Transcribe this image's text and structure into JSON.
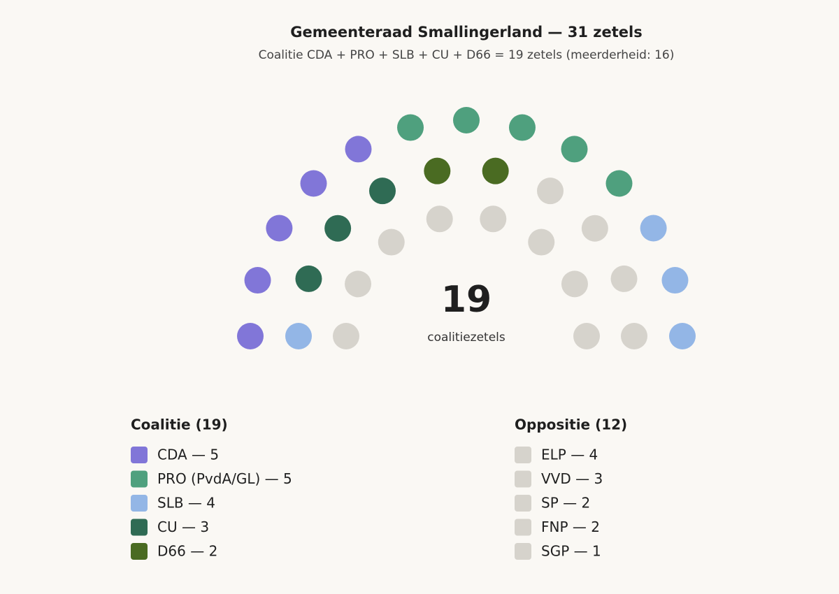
{
  "chart_data": {
    "type": "parliament",
    "title": "Gemeenteraad Smallingerland — 31 zetels",
    "subtitle": "Coalitie CDA + PRO + SLB + CU + D66 = 19 zetels (meerderheid: 16)",
    "center_value": 19,
    "center_label": "coalitiezetels",
    "groups": [
      {
        "title": "Coalitie (19)",
        "parties": [
          {
            "name": "CDA — 5",
            "seats": 5,
            "color": "#8176d8"
          },
          {
            "name": "PRO (PvdA/GL) — 5",
            "seats": 5,
            "color": "#4fa07e"
          },
          {
            "name": "SLB — 4",
            "seats": 4,
            "color": "#93b6e6"
          },
          {
            "name": "CU — 3",
            "seats": 3,
            "color": "#2f6b54"
          },
          {
            "name": "D66 — 2",
            "seats": 2,
            "color": "#4a6b22"
          }
        ]
      },
      {
        "title": "Oppositie (12)",
        "parties": [
          {
            "name": "ELP — 4",
            "seats": 4,
            "color": "#d6d3cc"
          },
          {
            "name": "VVD — 3",
            "seats": 3,
            "color": "#d6d3cc"
          },
          {
            "name": "SP — 2",
            "seats": 2,
            "color": "#d6d3cc"
          },
          {
            "name": "FNP — 2",
            "seats": 2,
            "color": "#d6d3cc"
          },
          {
            "name": "SGP — 1",
            "seats": 1,
            "color": "#d6d3cc"
          }
        ]
      }
    ]
  }
}
